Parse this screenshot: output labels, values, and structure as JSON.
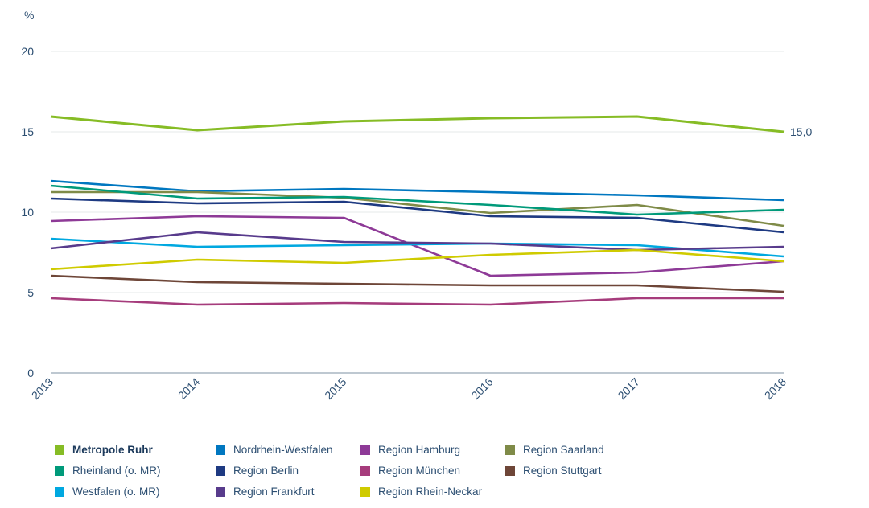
{
  "chart_data": {
    "type": "line",
    "title": "",
    "unit_label": "%",
    "xlabel": "",
    "ylabel": "%",
    "x": [
      "2013",
      "2014",
      "2015",
      "2016",
      "2017",
      "2018"
    ],
    "ylim": [
      0,
      20
    ],
    "yticks": [
      "0",
      "5",
      "10",
      "15",
      "20"
    ],
    "grid": true,
    "legend_position": "bottom",
    "annotations": [
      {
        "series": "Metropole Ruhr",
        "x": "2018",
        "text": "15,0"
      }
    ],
    "series": [
      {
        "name": "Metropole Ruhr",
        "color": "#86bc25",
        "highlight": true,
        "values": [
          15.95,
          15.1,
          15.65,
          15.85,
          15.95,
          15.0
        ]
      },
      {
        "name": "Nordrhein-Westfalen",
        "color": "#0077c0",
        "values": [
          11.95,
          11.3,
          11.45,
          11.25,
          11.05,
          10.75
        ]
      },
      {
        "name": "Region Hamburg",
        "color": "#8e3a97",
        "values": [
          9.45,
          9.75,
          9.65,
          6.05,
          6.25,
          6.95
        ]
      },
      {
        "name": "Region Saarland",
        "color": "#7f8b48",
        "values": [
          11.25,
          11.25,
          10.9,
          9.95,
          10.45,
          9.15
        ]
      },
      {
        "name": "Rheinland (o. MR)",
        "color": "#009a7a",
        "values": [
          11.65,
          10.85,
          10.95,
          10.45,
          9.85,
          10.15
        ]
      },
      {
        "name": "Region Berlin",
        "color": "#1e3a82",
        "values": [
          10.85,
          10.55,
          10.65,
          9.75,
          9.65,
          8.75
        ]
      },
      {
        "name": "Region München",
        "color": "#a63c7c",
        "values": [
          4.65,
          4.25,
          4.35,
          4.25,
          4.65,
          4.65
        ]
      },
      {
        "name": "Region Stuttgart",
        "color": "#6e4638",
        "values": [
          6.05,
          5.65,
          5.55,
          5.45,
          5.45,
          5.05
        ]
      },
      {
        "name": "Westfalen (o. MR)",
        "color": "#00a8e0",
        "values": [
          8.35,
          7.85,
          7.95,
          8.05,
          7.95,
          7.25
        ]
      },
      {
        "name": "Region Frankfurt",
        "color": "#583b8c",
        "values": [
          7.75,
          8.75,
          8.15,
          8.05,
          7.65,
          7.85
        ]
      },
      {
        "name": "Region Rhein-Neckar",
        "color": "#cfcb00",
        "values": [
          6.45,
          7.05,
          6.85,
          7.35,
          7.65,
          6.95
        ]
      }
    ]
  },
  "legend": [
    {
      "label": "Metropole Ruhr",
      "color": "#86bc25",
      "bold": true
    },
    {
      "label": "Nordrhein-Westfalen",
      "color": "#0077c0"
    },
    {
      "label": "Region Hamburg",
      "color": "#8e3a97"
    },
    {
      "label": "Region Saarland",
      "color": "#7f8b48"
    },
    {
      "label": "Rheinland (o. MR)",
      "color": "#009a7a"
    },
    {
      "label": "Region Berlin",
      "color": "#1e3a82"
    },
    {
      "label": "Region München",
      "color": "#a63c7c"
    },
    {
      "label": "Region Stuttgart",
      "color": "#6e4638"
    },
    {
      "label": "Westfalen (o. MR)",
      "color": "#00a8e0"
    },
    {
      "label": "Region Frankfurt",
      "color": "#583b8c"
    },
    {
      "label": "Region Rhein-Neckar",
      "color": "#cfcb00"
    }
  ]
}
